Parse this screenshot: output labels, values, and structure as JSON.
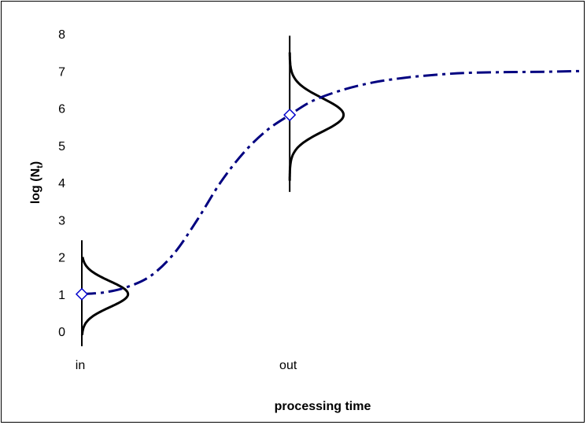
{
  "chart_data": {
    "type": "line",
    "xlabel": "processing time",
    "ylabel": "log (N",
    "ylabel_subscript": "t",
    "ylabel_close": ")",
    "ylim": [
      0,
      8
    ],
    "yticks": [
      "0",
      "1",
      "2",
      "3",
      "4",
      "5",
      "6",
      "7",
      "8"
    ],
    "x_categories": [
      "in",
      "out"
    ],
    "xlim": [
      0,
      6.5
    ],
    "x_category_positions": [
      0,
      2.7
    ],
    "grid": false,
    "legend": "none",
    "colors": {
      "growth_curve": "#000080",
      "marker": "#0000CC",
      "distribution": "#000000"
    },
    "series": [
      {
        "style": "dashed",
        "x": [
          0,
          0.3,
          0.6,
          0.9,
          1.2,
          1.5,
          1.8,
          2.1,
          2.4,
          2.7,
          3.0,
          3.4,
          3.8,
          4.2,
          4.6,
          5.0,
          5.5,
          6.0,
          6.5
        ],
        "y": [
          1.0,
          1.05,
          1.2,
          1.5,
          2.1,
          3.0,
          4.0,
          4.8,
          5.4,
          5.82,
          6.2,
          6.5,
          6.7,
          6.82,
          6.9,
          6.95,
          6.97,
          6.98,
          7.0
        ]
      }
    ],
    "markers": [
      {
        "category": "in",
        "x": 0,
        "y": 1.0,
        "shape": "diamond"
      },
      {
        "category": "out",
        "x": 2.7,
        "y": 5.82,
        "shape": "diamond"
      }
    ],
    "distributions": [
      {
        "category": "in",
        "x": 0,
        "mean": 1.0,
        "sd": 0.35,
        "y_range": [
          -0.4,
          2.45
        ],
        "amplitude": 0.6
      },
      {
        "category": "out",
        "x": 2.7,
        "mean": 5.82,
        "sd": 0.45,
        "y_range": [
          3.75,
          7.95
        ],
        "amplitude": 0.7
      }
    ]
  }
}
